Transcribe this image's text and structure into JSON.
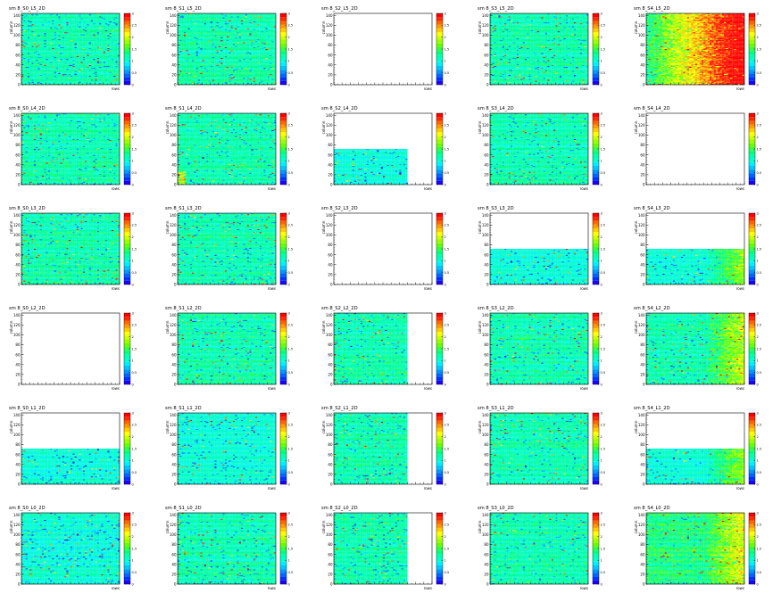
{
  "colors": {
    "page_bg": "#ffffff",
    "frame": "#000000",
    "empty_fill": "#ffffff"
  },
  "color_palette": [
    "#1e00ff",
    "#0033ff",
    "#0066ff",
    "#0099ff",
    "#00c8ff",
    "#00f0ff",
    "#00ffd0",
    "#00ffb0",
    "#00ff80",
    "#33ff40",
    "#66ff00",
    "#99ff00",
    "#ccff00",
    "#ffff00",
    "#ffcc00",
    "#ff9900",
    "#ff6600",
    "#ff2a00",
    "#ff0000"
  ],
  "chart_data": [
    {
      "type": "heatmap",
      "title": "sm 8_S0_L5_2D",
      "xlabel": "rows",
      "ylabel": "column",
      "xlim": [
        0,
        24
      ],
      "ylim": [
        0,
        144
      ],
      "y_ticks": [
        0,
        20,
        40,
        60,
        80,
        100,
        120,
        140
      ],
      "zlim": [
        0,
        3
      ],
      "z_ticks": [
        "0",
        "0.5",
        "1",
        "1.5",
        "2",
        "2.5",
        "3"
      ],
      "fill_xmax": 1,
      "fill_ymax": 1,
      "base_level": 7,
      "spread": 1.0,
      "variant": "uniform",
      "seed": 11
    },
    {
      "type": "heatmap",
      "title": "sm 8_S1_L5_2D",
      "xlabel": "rows",
      "ylabel": "column",
      "xlim": [
        0,
        24
      ],
      "ylim": [
        0,
        144
      ],
      "y_ticks": [
        0,
        20,
        40,
        60,
        80,
        100,
        120,
        140
      ],
      "zlim": [
        0,
        3
      ],
      "z_ticks": [
        "0",
        "0.5",
        "1",
        "1.5",
        "2",
        "2.5",
        "3"
      ],
      "fill_xmax": 1,
      "fill_ymax": 1,
      "base_level": 7,
      "spread": 1.0,
      "variant": "uniform",
      "seed": 12
    },
    {
      "type": "heatmap",
      "title": "sm 8_S2_L5_2D",
      "xlabel": "rows",
      "ylabel": "column",
      "xlim": [
        0,
        24
      ],
      "ylim": [
        0,
        144
      ],
      "y_ticks": [
        0,
        20,
        40,
        60,
        80,
        100,
        120,
        140
      ],
      "zlim": [
        0,
        3
      ],
      "z_ticks": [
        "0",
        "0.5",
        "1",
        "1.5",
        "2",
        "2.5",
        "3"
      ],
      "fill_xmax": 0,
      "fill_ymax": 0,
      "base_level": 7,
      "spread": 1.0,
      "variant": "empty",
      "seed": 13
    },
    {
      "type": "heatmap",
      "title": "sm 8_S3_L5_2D",
      "xlabel": "rows",
      "ylabel": "column",
      "xlim": [
        0,
        24
      ],
      "ylim": [
        0,
        144
      ],
      "y_ticks": [
        0,
        20,
        40,
        60,
        80,
        100,
        120,
        140
      ],
      "zlim": [
        0,
        3
      ],
      "z_ticks": [
        "0",
        "0.5",
        "1",
        "1.5",
        "2",
        "2.5",
        "3"
      ],
      "fill_xmax": 1,
      "fill_ymax": 1,
      "base_level": 7,
      "spread": 1.0,
      "variant": "uniform",
      "seed": 14
    },
    {
      "type": "heatmap",
      "title": "sm 8_S4_L5_2D",
      "xlabel": "rows",
      "ylabel": "column",
      "xlim": [
        0,
        24
      ],
      "ylim": [
        0,
        144
      ],
      "y_ticks": [
        0,
        20,
        40,
        60,
        80,
        100,
        120,
        140
      ],
      "zlim": [
        0,
        3
      ],
      "z_ticks": [
        "0",
        "0.5",
        "1",
        "1.5",
        "2",
        "2.5",
        "3"
      ],
      "fill_xmax": 1,
      "fill_ymax": 1,
      "base_level": 9,
      "spread": 1.0,
      "variant": "hot",
      "seed": 15
    },
    {
      "type": "heatmap",
      "title": "sm 8_S0_L4_2D",
      "xlabel": "rows",
      "ylabel": "column",
      "xlim": [
        0,
        24
      ],
      "ylim": [
        0,
        144
      ],
      "y_ticks": [
        0,
        20,
        40,
        60,
        80,
        100,
        120,
        140
      ],
      "zlim": [
        0,
        3
      ],
      "z_ticks": [
        "0",
        "0.5",
        "1",
        "1.5",
        "2",
        "2.5",
        "3"
      ],
      "fill_xmax": 1,
      "fill_ymax": 1,
      "base_level": 7,
      "spread": 1.0,
      "variant": "uniform",
      "seed": 21
    },
    {
      "type": "heatmap",
      "title": "sm 8_S1_L4_2D",
      "xlabel": "rows",
      "ylabel": "column",
      "xlim": [
        0,
        24
      ],
      "ylim": [
        0,
        144
      ],
      "y_ticks": [
        0,
        20,
        40,
        60,
        80,
        100,
        120,
        140
      ],
      "zlim": [
        0,
        3
      ],
      "z_ticks": [
        "0",
        "0.5",
        "1",
        "1.5",
        "2",
        "2.5",
        "3"
      ],
      "fill_xmax": 1,
      "fill_ymax": 1,
      "base_level": 7,
      "spread": 1.0,
      "variant": "leftspots",
      "seed": 22
    },
    {
      "type": "heatmap",
      "title": "sm 8_S2_L4_2D",
      "xlabel": "rows",
      "ylabel": "column",
      "xlim": [
        0,
        24
      ],
      "ylim": [
        0,
        144
      ],
      "y_ticks": [
        0,
        20,
        40,
        60,
        80,
        100,
        120,
        140
      ],
      "zlim": [
        0,
        3
      ],
      "z_ticks": [
        "0",
        "0.5",
        "1",
        "1.5",
        "2",
        "2.5",
        "3"
      ],
      "fill_xmax": 0.75,
      "fill_ymax": 0.5,
      "base_level": 6,
      "spread": 0.8,
      "variant": "uniform",
      "seed": 23
    },
    {
      "type": "heatmap",
      "title": "sm 8_S3_L4_2D",
      "xlabel": "rows",
      "ylabel": "column",
      "xlim": [
        0,
        24
      ],
      "ylim": [
        0,
        144
      ],
      "y_ticks": [
        0,
        20,
        40,
        60,
        80,
        100,
        120,
        140
      ],
      "zlim": [
        0,
        3
      ],
      "z_ticks": [
        "0",
        "0.5",
        "1",
        "1.5",
        "2",
        "2.5",
        "3"
      ],
      "fill_xmax": 1,
      "fill_ymax": 1,
      "base_level": 7,
      "spread": 1.0,
      "variant": "uniform",
      "seed": 24
    },
    {
      "type": "heatmap",
      "title": "sm 8_S4_L4_2D",
      "xlabel": "rows",
      "ylabel": "column",
      "xlim": [
        0,
        24
      ],
      "ylim": [
        0,
        144
      ],
      "y_ticks": [
        0,
        20,
        40,
        60,
        80,
        100,
        120,
        140
      ],
      "zlim": [
        0,
        3
      ],
      "z_ticks": [
        "0",
        "0.5",
        "1",
        "1.5",
        "2",
        "2.5",
        "3"
      ],
      "fill_xmax": 0,
      "fill_ymax": 0,
      "base_level": 7,
      "spread": 1.0,
      "variant": "empty",
      "seed": 25
    },
    {
      "type": "heatmap",
      "title": "sm 8_S0_L3_2D",
      "xlabel": "rows",
      "ylabel": "column",
      "xlim": [
        0,
        24
      ],
      "ylim": [
        0,
        144
      ],
      "y_ticks": [
        0,
        20,
        40,
        60,
        80,
        100,
        120,
        140
      ],
      "zlim": [
        0,
        3
      ],
      "z_ticks": [
        "0",
        "0.5",
        "1",
        "1.5",
        "2",
        "2.5",
        "3"
      ],
      "fill_xmax": 1,
      "fill_ymax": 1,
      "base_level": 7,
      "spread": 1.2,
      "variant": "uniform",
      "seed": 31
    },
    {
      "type": "heatmap",
      "title": "sm 8_S1_L3_2D",
      "xlabel": "rows",
      "ylabel": "column",
      "xlim": [
        0,
        24
      ],
      "ylim": [
        0,
        144
      ],
      "y_ticks": [
        0,
        20,
        40,
        60,
        80,
        100,
        120,
        140
      ],
      "zlim": [
        0,
        3
      ],
      "z_ticks": [
        "0",
        "0.5",
        "1",
        "1.5",
        "2",
        "2.5",
        "3"
      ],
      "fill_xmax": 1,
      "fill_ymax": 1,
      "base_level": 7,
      "spread": 1.0,
      "variant": "uniform",
      "seed": 32
    },
    {
      "type": "heatmap",
      "title": "sm 8_S2_L3_2D",
      "xlabel": "rows",
      "ylabel": "column",
      "xlim": [
        0,
        24
      ],
      "ylim": [
        0,
        144
      ],
      "y_ticks": [
        0,
        20,
        40,
        60,
        80,
        100,
        120,
        140
      ],
      "zlim": [
        0,
        3
      ],
      "z_ticks": [
        "0",
        "0.5",
        "1",
        "1.5",
        "2",
        "2.5",
        "3"
      ],
      "fill_xmax": 0,
      "fill_ymax": 0,
      "base_level": 7,
      "spread": 1.0,
      "variant": "empty",
      "seed": 33
    },
    {
      "type": "heatmap",
      "title": "sm 8_S3_L3_2D",
      "xlabel": "rows",
      "ylabel": "column",
      "xlim": [
        0,
        24
      ],
      "ylim": [
        0,
        144
      ],
      "y_ticks": [
        0,
        20,
        40,
        60,
        80,
        100,
        120,
        140
      ],
      "zlim": [
        0,
        3
      ],
      "z_ticks": [
        "0",
        "0.5",
        "1",
        "1.5",
        "2",
        "2.5",
        "3"
      ],
      "fill_xmax": 1,
      "fill_ymax": 0.5,
      "base_level": 6,
      "spread": 0.8,
      "variant": "uniform",
      "seed": 34
    },
    {
      "type": "heatmap",
      "title": "sm 8_S4_L3_2D",
      "xlabel": "rows",
      "ylabel": "column",
      "xlim": [
        0,
        24
      ],
      "ylim": [
        0,
        144
      ],
      "y_ticks": [
        0,
        20,
        40,
        60,
        80,
        100,
        120,
        140
      ],
      "zlim": [
        0,
        3
      ],
      "z_ticks": [
        "0",
        "0.5",
        "1",
        "1.5",
        "2",
        "2.5",
        "3"
      ],
      "fill_xmax": 1,
      "fill_ymax": 0.5,
      "base_level": 6,
      "spread": 0.8,
      "variant": "warmright",
      "seed": 35
    },
    {
      "type": "heatmap",
      "title": "sm 8_S0_L2_2D",
      "xlabel": "rows",
      "ylabel": "column",
      "xlim": [
        0,
        24
      ],
      "ylim": [
        0,
        144
      ],
      "y_ticks": [
        0,
        20,
        40,
        60,
        80,
        100,
        120,
        140
      ],
      "zlim": [
        0,
        3
      ],
      "z_ticks": [
        "0",
        "0.5",
        "1",
        "1.5",
        "2",
        "2.5",
        "3"
      ],
      "fill_xmax": 0,
      "fill_ymax": 0,
      "base_level": 7,
      "spread": 1.0,
      "variant": "empty",
      "seed": 41
    },
    {
      "type": "heatmap",
      "title": "sm 8_S1_L2_2D",
      "xlabel": "rows",
      "ylabel": "column",
      "xlim": [
        0,
        24
      ],
      "ylim": [
        0,
        144
      ],
      "y_ticks": [
        0,
        20,
        40,
        60,
        80,
        100,
        120,
        140
      ],
      "zlim": [
        0,
        3
      ],
      "z_ticks": [
        "0",
        "0.5",
        "1",
        "1.5",
        "2",
        "2.5",
        "3"
      ],
      "fill_xmax": 1,
      "fill_ymax": 1,
      "base_level": 7,
      "spread": 1.2,
      "variant": "uniform",
      "seed": 42
    },
    {
      "type": "heatmap",
      "title": "sm 8_S2_L2_2D",
      "xlabel": "rows",
      "ylabel": "column",
      "xlim": [
        0,
        24
      ],
      "ylim": [
        0,
        144
      ],
      "y_ticks": [
        0,
        20,
        40,
        60,
        80,
        100,
        120,
        140
      ],
      "zlim": [
        0,
        3
      ],
      "z_ticks": [
        "0",
        "0.5",
        "1",
        "1.5",
        "2",
        "2.5",
        "3"
      ],
      "fill_xmax": 0.75,
      "fill_ymax": 1,
      "base_level": 7,
      "spread": 1.2,
      "variant": "uniform",
      "seed": 43
    },
    {
      "type": "heatmap",
      "title": "sm 8_S3_L2_2D",
      "xlabel": "rows",
      "ylabel": "column",
      "xlim": [
        0,
        24
      ],
      "ylim": [
        0,
        144
      ],
      "y_ticks": [
        0,
        20,
        40,
        60,
        80,
        100,
        120,
        140
      ],
      "zlim": [
        0,
        3
      ],
      "z_ticks": [
        "0",
        "0.5",
        "1",
        "1.5",
        "2",
        "2.5",
        "3"
      ],
      "fill_xmax": 1,
      "fill_ymax": 1,
      "base_level": 7,
      "spread": 1.2,
      "variant": "uniform",
      "seed": 44
    },
    {
      "type": "heatmap",
      "title": "sm 8_S4_L2_2D",
      "xlabel": "rows",
      "ylabel": "column",
      "xlim": [
        0,
        24
      ],
      "ylim": [
        0,
        144
      ],
      "y_ticks": [
        0,
        20,
        40,
        60,
        80,
        100,
        120,
        140
      ],
      "zlim": [
        0,
        3
      ],
      "z_ticks": [
        "0",
        "0.5",
        "1",
        "1.5",
        "2",
        "2.5",
        "3"
      ],
      "fill_xmax": 1,
      "fill_ymax": 1,
      "base_level": 7,
      "spread": 1.2,
      "variant": "warmright",
      "seed": 45
    },
    {
      "type": "heatmap",
      "title": "sm 8_S0_L1_2D",
      "xlabel": "rows",
      "ylabel": "column",
      "xlim": [
        0,
        24
      ],
      "ylim": [
        0,
        144
      ],
      "y_ticks": [
        0,
        20,
        40,
        60,
        80,
        100,
        120,
        140
      ],
      "zlim": [
        0,
        3
      ],
      "z_ticks": [
        "0",
        "0.5",
        "1",
        "1.5",
        "2",
        "2.5",
        "3"
      ],
      "fill_xmax": 1,
      "fill_ymax": 0.5,
      "base_level": 6,
      "spread": 0.8,
      "variant": "uniform",
      "seed": 51
    },
    {
      "type": "heatmap",
      "title": "sm 8_S1_L1_2D",
      "xlabel": "rows",
      "ylabel": "column",
      "xlim": [
        0,
        24
      ],
      "ylim": [
        0,
        144
      ],
      "y_ticks": [
        0,
        20,
        40,
        60,
        80,
        100,
        120,
        140
      ],
      "zlim": [
        0,
        3
      ],
      "z_ticks": [
        "0",
        "0.5",
        "1",
        "1.5",
        "2",
        "2.5",
        "3"
      ],
      "fill_xmax": 1,
      "fill_ymax": 1,
      "base_level": 6,
      "spread": 0.8,
      "variant": "uniform",
      "seed": 52
    },
    {
      "type": "heatmap",
      "title": "sm 8_S2_L1_2D",
      "xlabel": "rows",
      "ylabel": "column",
      "xlim": [
        0,
        24
      ],
      "ylim": [
        0,
        144
      ],
      "y_ticks": [
        0,
        20,
        40,
        60,
        80,
        100,
        120,
        140
      ],
      "zlim": [
        0,
        3
      ],
      "z_ticks": [
        "0",
        "0.5",
        "1",
        "1.5",
        "2",
        "2.5",
        "3"
      ],
      "fill_xmax": 0.75,
      "fill_ymax": 1,
      "base_level": 7,
      "spread": 1.1,
      "variant": "uniform",
      "seed": 53
    },
    {
      "type": "heatmap",
      "title": "sm 8_S3_L1_2D",
      "xlabel": "rows",
      "ylabel": "column",
      "xlim": [
        0,
        24
      ],
      "ylim": [
        0,
        144
      ],
      "y_ticks": [
        0,
        20,
        40,
        60,
        80,
        100,
        120,
        140
      ],
      "zlim": [
        0,
        3
      ],
      "z_ticks": [
        "0",
        "0.5",
        "1",
        "1.5",
        "2",
        "2.5",
        "3"
      ],
      "fill_xmax": 1,
      "fill_ymax": 1,
      "base_level": 7,
      "spread": 1.0,
      "variant": "uniform",
      "seed": 54
    },
    {
      "type": "heatmap",
      "title": "sm 8_S4_L1_2D",
      "xlabel": "rows",
      "ylabel": "column",
      "xlim": [
        0,
        24
      ],
      "ylim": [
        0,
        144
      ],
      "y_ticks": [
        0,
        20,
        40,
        60,
        80,
        100,
        120,
        140
      ],
      "zlim": [
        0,
        3
      ],
      "z_ticks": [
        "0",
        "0.5",
        "1",
        "1.5",
        "2",
        "2.5",
        "3"
      ],
      "fill_xmax": 1,
      "fill_ymax": 0.5,
      "base_level": 6,
      "spread": 0.8,
      "variant": "warmright",
      "seed": 55
    },
    {
      "type": "heatmap",
      "title": "sm 8_S0_L0_2D",
      "xlabel": "rows",
      "ylabel": "column",
      "xlim": [
        0,
        24
      ],
      "ylim": [
        0,
        144
      ],
      "y_ticks": [
        0,
        20,
        40,
        60,
        80,
        100,
        120,
        140
      ],
      "zlim": [
        0,
        3
      ],
      "z_ticks": [
        "0",
        "0.5",
        "1",
        "1.5",
        "2",
        "2.5",
        "3"
      ],
      "fill_xmax": 1,
      "fill_ymax": 1,
      "base_level": 6,
      "spread": 1.1,
      "variant": "uniform",
      "seed": 61
    },
    {
      "type": "heatmap",
      "title": "sm 8_S1_L0_2D",
      "xlabel": "rows",
      "ylabel": "column",
      "xlim": [
        0,
        24
      ],
      "ylim": [
        0,
        144
      ],
      "y_ticks": [
        0,
        20,
        40,
        60,
        80,
        100,
        120,
        140
      ],
      "zlim": [
        0,
        3
      ],
      "z_ticks": [
        "0",
        "0.5",
        "1",
        "1.5",
        "2",
        "2.5",
        "3"
      ],
      "fill_xmax": 1,
      "fill_ymax": 1,
      "base_level": 7,
      "spread": 1.1,
      "variant": "uniform",
      "seed": 62
    },
    {
      "type": "heatmap",
      "title": "sm 8_S2_L0_2D",
      "xlabel": "rows",
      "ylabel": "column",
      "xlim": [
        0,
        24
      ],
      "ylim": [
        0,
        144
      ],
      "y_ticks": [
        0,
        20,
        40,
        60,
        80,
        100,
        120,
        140
      ],
      "zlim": [
        0,
        3
      ],
      "z_ticks": [
        "0",
        "0.5",
        "1",
        "1.5",
        "2",
        "2.5",
        "3"
      ],
      "fill_xmax": 0.75,
      "fill_ymax": 1,
      "base_level": 7,
      "spread": 1.1,
      "variant": "uniform",
      "seed": 63
    },
    {
      "type": "heatmap",
      "title": "sm 8_S3_L0_2D",
      "xlabel": "rows",
      "ylabel": "column",
      "xlim": [
        0,
        24
      ],
      "ylim": [
        0,
        144
      ],
      "y_ticks": [
        0,
        20,
        40,
        60,
        80,
        100,
        120,
        140
      ],
      "zlim": [
        0,
        3
      ],
      "z_ticks": [
        "0",
        "0.5",
        "1",
        "1.5",
        "2",
        "2.5",
        "3"
      ],
      "fill_xmax": 1,
      "fill_ymax": 1,
      "base_level": 7,
      "spread": 1.1,
      "variant": "uniform",
      "seed": 64
    },
    {
      "type": "heatmap",
      "title": "sm 8_S4_L0_2D",
      "xlabel": "rows",
      "ylabel": "column",
      "xlim": [
        0,
        24
      ],
      "ylim": [
        0,
        144
      ],
      "y_ticks": [
        0,
        20,
        40,
        60,
        80,
        100,
        120,
        140
      ],
      "zlim": [
        0,
        3
      ],
      "z_ticks": [
        "0",
        "0.5",
        "1",
        "1.5",
        "2",
        "2.5",
        "3"
      ],
      "fill_xmax": 1,
      "fill_ymax": 1,
      "base_level": 8,
      "spread": 1.2,
      "variant": "warmright",
      "seed": 65
    }
  ]
}
